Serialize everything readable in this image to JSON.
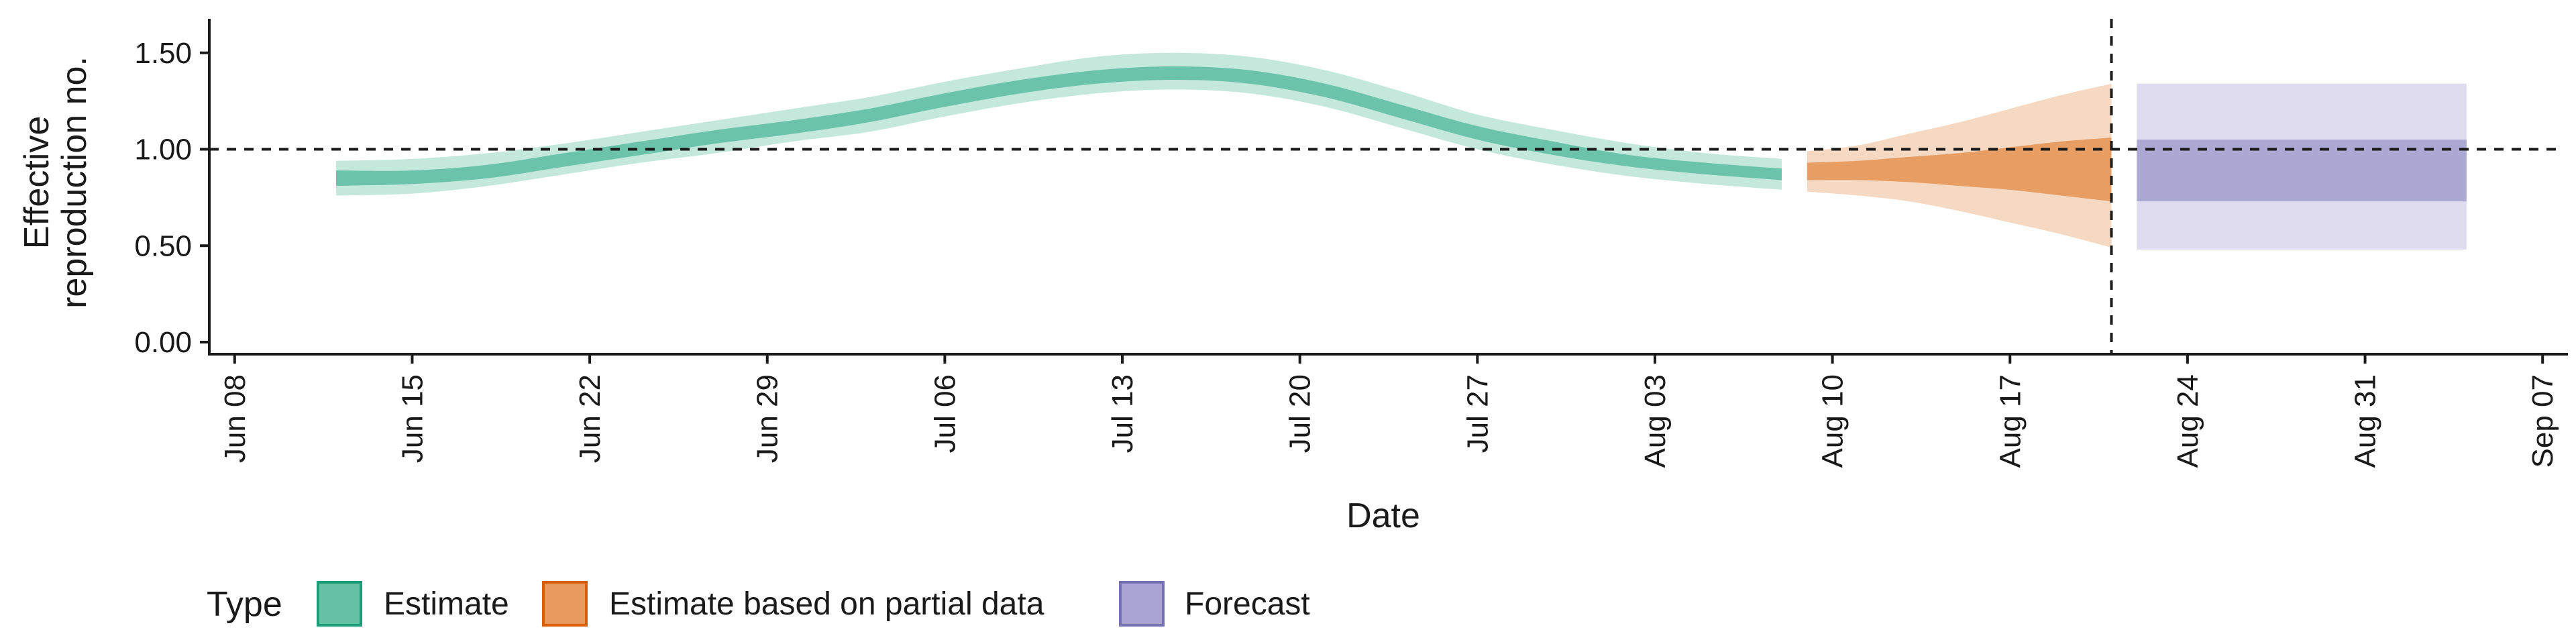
{
  "chart_data": {
    "type": "area",
    "title": "",
    "xlabel": "Date",
    "ylabel": "Effective reproduction no.",
    "ylabel_lines": [
      "Effective",
      "reproduction no."
    ],
    "ylim": [
      0,
      1.6
    ],
    "xlim": [
      "2020-06-07",
      "2020-09-08"
    ],
    "y_ticks": [
      0,
      0.5,
      1.0,
      1.5
    ],
    "y_tick_labels": [
      "0.00",
      "0.50",
      "1.00",
      "1.50"
    ],
    "x_ticks": [
      "2020-06-08",
      "2020-06-15",
      "2020-06-22",
      "2020-06-29",
      "2020-07-06",
      "2020-07-13",
      "2020-07-20",
      "2020-07-27",
      "2020-08-03",
      "2020-08-10",
      "2020-08-17",
      "2020-08-24",
      "2020-08-31",
      "2020-09-07"
    ],
    "x_tick_labels": [
      "Jun 08",
      "Jun 15",
      "Jun 22",
      "Jun 29",
      "Jul 06",
      "Jul 13",
      "Jul 20",
      "Jul 27",
      "Aug 03",
      "Aug 10",
      "Aug 17",
      "Aug 24",
      "Aug 31",
      "Sep 07"
    ],
    "reference_line": {
      "y": 1.0,
      "style": "dashed"
    },
    "vertical_line": {
      "x": "2020-08-21",
      "style": "dashed"
    },
    "legend": {
      "title": "Type",
      "placement": "bottom",
      "entries": [
        {
          "label": "Estimate",
          "color": "#66c2a5",
          "border": "#1b9e77"
        },
        {
          "label": "Estimate based on partial data",
          "color": "#e79a5e",
          "border": "#d95f02"
        },
        {
          "label": "Forecast",
          "color": "#a9a4d2",
          "border": "#7570b3"
        }
      ]
    },
    "series": [
      {
        "name": "Estimate",
        "color": "#66c2a5",
        "x": [
          "2020-06-12",
          "2020-06-15",
          "2020-06-18",
          "2020-06-21",
          "2020-06-24",
          "2020-06-27",
          "2020-06-30",
          "2020-07-03",
          "2020-07-06",
          "2020-07-09",
          "2020-07-12",
          "2020-07-15",
          "2020-07-18",
          "2020-07-21",
          "2020-07-24",
          "2020-07-27",
          "2020-07-30",
          "2020-08-02",
          "2020-08-05",
          "2020-08-08"
        ],
        "outer_lower": [
          0.76,
          0.77,
          0.81,
          0.87,
          0.93,
          0.98,
          1.04,
          1.09,
          1.17,
          1.24,
          1.29,
          1.31,
          1.29,
          1.22,
          1.11,
          1.0,
          0.92,
          0.86,
          0.82,
          0.79
        ],
        "inner_lower": [
          0.81,
          0.82,
          0.85,
          0.91,
          0.97,
          1.03,
          1.08,
          1.14,
          1.22,
          1.29,
          1.34,
          1.36,
          1.34,
          1.27,
          1.16,
          1.05,
          0.97,
          0.91,
          0.87,
          0.84
        ],
        "inner_upper": [
          0.89,
          0.89,
          0.92,
          0.98,
          1.04,
          1.1,
          1.15,
          1.21,
          1.29,
          1.36,
          1.41,
          1.43,
          1.41,
          1.34,
          1.23,
          1.12,
          1.04,
          0.97,
          0.93,
          0.9
        ],
        "outer_upper": [
          0.94,
          0.95,
          0.98,
          1.03,
          1.09,
          1.15,
          1.21,
          1.27,
          1.35,
          1.42,
          1.48,
          1.5,
          1.48,
          1.41,
          1.3,
          1.18,
          1.1,
          1.03,
          0.98,
          0.95
        ]
      },
      {
        "name": "Estimate based on partial data",
        "color": "#e79a5e",
        "x": [
          "2020-08-09",
          "2020-08-11",
          "2020-08-13",
          "2020-08-15",
          "2020-08-17",
          "2020-08-19",
          "2020-08-21"
        ],
        "outer_lower": [
          0.78,
          0.76,
          0.73,
          0.68,
          0.62,
          0.56,
          0.49
        ],
        "inner_lower": [
          0.84,
          0.84,
          0.83,
          0.81,
          0.79,
          0.76,
          0.73
        ],
        "inner_upper": [
          0.93,
          0.94,
          0.96,
          0.98,
          1.01,
          1.04,
          1.06
        ],
        "outer_upper": [
          0.99,
          1.02,
          1.08,
          1.14,
          1.21,
          1.28,
          1.34
        ]
      },
      {
        "name": "Forecast",
        "color": "#a9a4d2",
        "x": [
          "2020-08-22",
          "2020-09-04"
        ],
        "outer_lower": [
          0.48,
          0.48
        ],
        "inner_lower": [
          0.73,
          0.73
        ],
        "inner_upper": [
          1.05,
          1.05
        ],
        "outer_upper": [
          1.34,
          1.34
        ]
      }
    ]
  }
}
